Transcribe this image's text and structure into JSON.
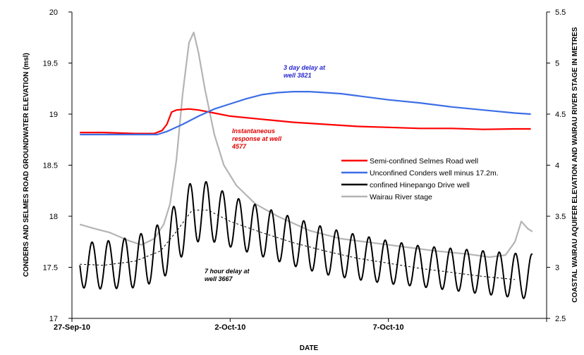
{
  "chart_data": {
    "type": "line",
    "xlabel": "DATE",
    "ylabel_left": "CONDERS AND SELMES ROAD GROUNDWATER ELEVATION (msl)",
    "ylabel_right": "COASTAL WAIRAU AQUIFER ELEVATION AND WAIRAU RIVER STAGE IN METRES",
    "x_ticks": [
      "27-Sep-10",
      "2-Oct-10",
      "7-Oct-10"
    ],
    "x_range_days": [
      0,
      15
    ],
    "ylim_left": [
      17,
      20
    ],
    "ylim_right": [
      2.5,
      5.5
    ],
    "y_ticks_left": [
      "17",
      "17.5",
      "18",
      "18.5",
      "19",
      "19.5",
      "20"
    ],
    "y_ticks_right": [
      "2.5",
      "3",
      "3.5",
      "4",
      "4.5",
      "5",
      "5.5"
    ],
    "legend": {
      "placement": "right",
      "entries": [
        {
          "label": "Semi-confined Selmes Road well",
          "color": "#ff0000"
        },
        {
          "label": "Unconfined Conders well minus 17.2m.",
          "color": "#3c6ee6"
        },
        {
          "label": "confined Hinepango Drive well",
          "color": "#000000"
        },
        {
          "label": "Wairau River stage",
          "color": "#b4b4b4"
        }
      ]
    },
    "annotations": [
      {
        "text": [
          "3 day delay at",
          "well 3821"
        ],
        "color": "#2828d0"
      },
      {
        "text": [
          "Instantaneous",
          "response at well",
          "4577"
        ],
        "color": "#e00000"
      },
      {
        "text": [
          "7 hour delay at",
          "well 3667"
        ],
        "color": "#000000"
      }
    ],
    "series": [
      {
        "name": "Semi-confined Selmes Road well",
        "axis": "left",
        "color": "#ff0000",
        "points": [
          [
            0.25,
            18.82
          ],
          [
            1,
            18.82
          ],
          [
            2,
            18.81
          ],
          [
            2.6,
            18.81
          ],
          [
            2.85,
            18.84
          ],
          [
            3.0,
            18.9
          ],
          [
            3.15,
            19.02
          ],
          [
            3.3,
            19.04
          ],
          [
            3.7,
            19.05
          ],
          [
            4.0,
            19.04
          ],
          [
            4.5,
            19.01
          ],
          [
            5,
            18.98
          ],
          [
            6,
            18.95
          ],
          [
            7,
            18.92
          ],
          [
            8,
            18.9
          ],
          [
            9,
            18.88
          ],
          [
            10,
            18.87
          ],
          [
            11,
            18.86
          ],
          [
            12,
            18.86
          ],
          [
            13,
            18.85
          ],
          [
            14,
            18.855
          ],
          [
            14.5,
            18.855
          ]
        ]
      },
      {
        "name": "Unconfined Conders well minus 17.2m.",
        "axis": "left",
        "color": "#3c6ee6",
        "points": [
          [
            0.25,
            18.8
          ],
          [
            1,
            18.8
          ],
          [
            2,
            18.8
          ],
          [
            2.7,
            18.8
          ],
          [
            3.0,
            18.83
          ],
          [
            3.5,
            18.9
          ],
          [
            4.0,
            18.98
          ],
          [
            4.5,
            19.05
          ],
          [
            5,
            19.1
          ],
          [
            5.5,
            19.15
          ],
          [
            6,
            19.19
          ],
          [
            6.5,
            19.21
          ],
          [
            7,
            19.22
          ],
          [
            7.5,
            19.22
          ],
          [
            8,
            19.21
          ],
          [
            8.5,
            19.2
          ],
          [
            9,
            19.18
          ],
          [
            10,
            19.14
          ],
          [
            11,
            19.11
          ],
          [
            12,
            19.07
          ],
          [
            13,
            19.04
          ],
          [
            14,
            19.01
          ],
          [
            14.5,
            19.0
          ]
        ]
      },
      {
        "name": "confined Hinepango Drive well",
        "axis": "left",
        "color": "#000000",
        "wave": {
          "start": 0.25,
          "end": 14.55,
          "period": 0.5147,
          "trend": [
            [
              0.25,
              17.52
            ],
            [
              1,
              17.52
            ],
            [
              2,
              17.55
            ],
            [
              2.8,
              17.65
            ],
            [
              3.3,
              17.83
            ],
            [
              3.8,
              18.05
            ],
            [
              4.3,
              18.05
            ],
            [
              5,
              17.95
            ],
            [
              6,
              17.85
            ],
            [
              7,
              17.75
            ],
            [
              8,
              17.66
            ],
            [
              9,
              17.6
            ],
            [
              10,
              17.55
            ],
            [
              11,
              17.51
            ],
            [
              12,
              17.48
            ],
            [
              13,
              17.45
            ],
            [
              14,
              17.42
            ],
            [
              14.5,
              17.41
            ]
          ],
          "amplitude": [
            [
              0.25,
              0.22
            ],
            [
              2,
              0.25
            ],
            [
              3.3,
              0.3
            ],
            [
              4,
              0.3
            ],
            [
              5,
              0.25
            ],
            [
              8,
              0.23
            ],
            [
              11,
              0.2
            ],
            [
              14.5,
              0.22
            ]
          ]
        }
      },
      {
        "name": "Wairau River stage",
        "axis": "right",
        "color": "#b4b4b4",
        "points": [
          [
            0.25,
            3.42
          ],
          [
            0.7,
            3.38
          ],
          [
            1.2,
            3.34
          ],
          [
            1.8,
            3.26
          ],
          [
            2.2,
            3.22
          ],
          [
            2.6,
            3.28
          ],
          [
            2.9,
            3.42
          ],
          [
            3.1,
            3.62
          ],
          [
            3.3,
            4.05
          ],
          [
            3.5,
            4.7
          ],
          [
            3.7,
            5.2
          ],
          [
            3.85,
            5.3
          ],
          [
            4.0,
            5.1
          ],
          [
            4.2,
            4.75
          ],
          [
            4.5,
            4.3
          ],
          [
            4.8,
            4.0
          ],
          [
            5.2,
            3.8
          ],
          [
            5.8,
            3.62
          ],
          [
            6.5,
            3.5
          ],
          [
            7.5,
            3.36
          ],
          [
            8.5,
            3.28
          ],
          [
            9.5,
            3.24
          ],
          [
            10.5,
            3.2
          ],
          [
            11.5,
            3.16
          ],
          [
            12.5,
            3.13
          ],
          [
            13.2,
            3.1
          ],
          [
            13.7,
            3.12
          ],
          [
            14.0,
            3.25
          ],
          [
            14.2,
            3.45
          ],
          [
            14.4,
            3.38
          ],
          [
            14.55,
            3.35
          ]
        ]
      },
      {
        "name": "",
        "axis": "left",
        "color": "#000000",
        "style": "dashed",
        "points": [
          [
            0.25,
            17.53
          ],
          [
            1,
            17.52
          ],
          [
            2,
            17.56
          ],
          [
            2.8,
            17.66
          ],
          [
            3.3,
            17.85
          ],
          [
            3.8,
            18.06
          ],
          [
            4.3,
            18.06
          ],
          [
            5,
            17.95
          ],
          [
            6,
            17.84
          ],
          [
            7,
            17.74
          ],
          [
            8,
            17.66
          ],
          [
            9,
            17.59
          ],
          [
            10,
            17.54
          ],
          [
            11,
            17.49
          ],
          [
            12,
            17.45
          ],
          [
            13,
            17.41
          ],
          [
            14,
            17.38
          ]
        ]
      }
    ]
  }
}
